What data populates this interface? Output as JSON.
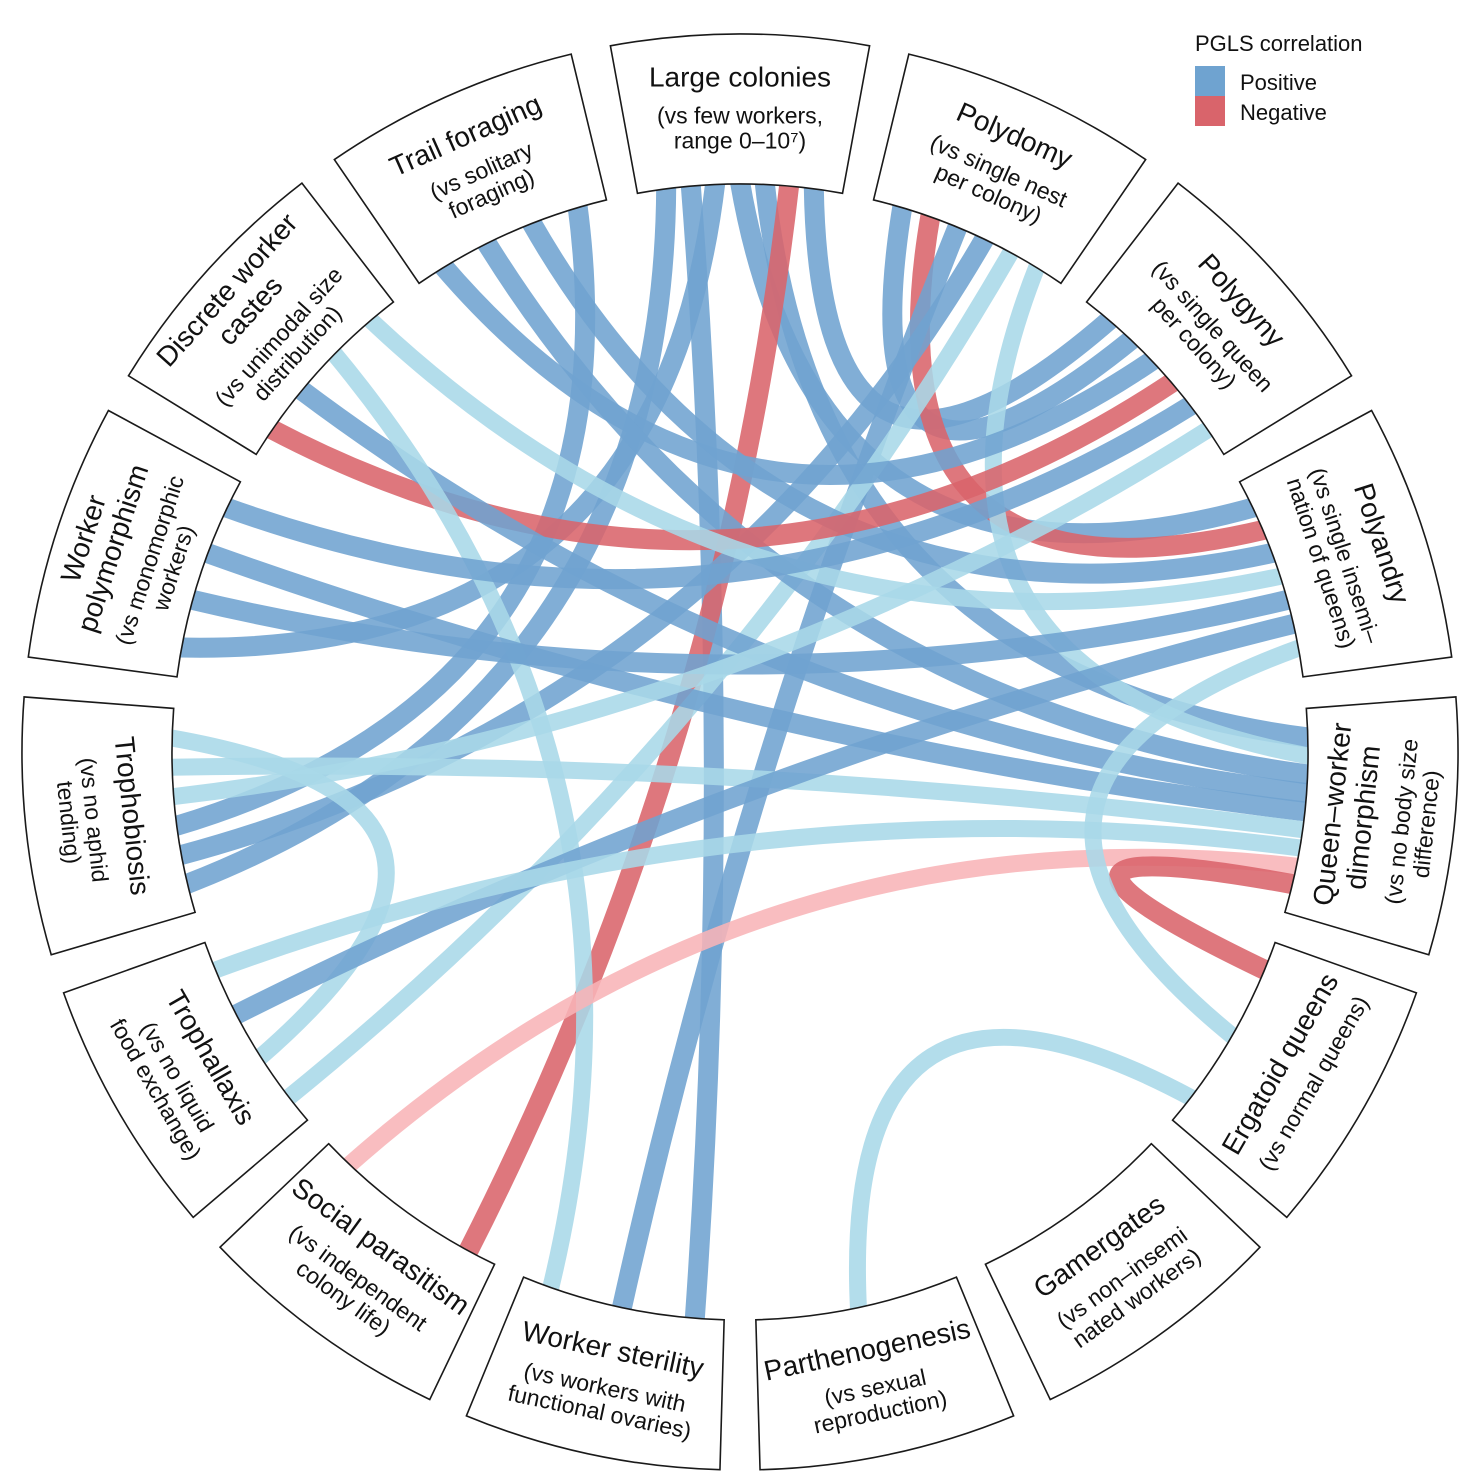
{
  "legend": {
    "title": "PGLS correlation",
    "items": [
      {
        "label": "Positive",
        "color": "#6fa3d0"
      },
      {
        "label": "Negative",
        "color": "#d9646b"
      }
    ]
  },
  "colors": {
    "positive_strong": "#6fa3d0",
    "positive_weak": "#a9d8e8",
    "negative_strong": "#d9646b",
    "negative_weak": "#f8b4b7"
  },
  "sectors": [
    {
      "id": "large-colonies",
      "title": [
        "Large colonies"
      ],
      "subtitle": [
        "(vs few workers,",
        "range 0–10⁷)"
      ]
    },
    {
      "id": "polydomy",
      "title": [
        "Polydomy"
      ],
      "subtitle": [
        "(vs single nest",
        "per colony)"
      ]
    },
    {
      "id": "polygyny",
      "title": [
        "Polygyny"
      ],
      "subtitle": [
        "(vs single queen",
        "per colony)"
      ]
    },
    {
      "id": "polyandry",
      "title": [
        "Polyandry"
      ],
      "subtitle": [
        "(vs single insemi–",
        "nation of queens)"
      ]
    },
    {
      "id": "queen-worker-dimorphism",
      "title": [
        "Queen–worker",
        "dimorphism"
      ],
      "subtitle": [
        "(vs no body size",
        "difference)"
      ]
    },
    {
      "id": "ergatoid-queens",
      "title": [
        "Ergatoid queens"
      ],
      "subtitle": [
        "(vs normal queens)"
      ]
    },
    {
      "id": "gamergates",
      "title": [
        "Gamergates"
      ],
      "subtitle": [
        "(vs non–insemi",
        "nated workers)"
      ]
    },
    {
      "id": "parthenogenesis",
      "title": [
        "Parthenogenesis"
      ],
      "subtitle": [
        "(vs sexual",
        "reproduction)"
      ]
    },
    {
      "id": "worker-sterility",
      "title": [
        "Worker sterility"
      ],
      "subtitle": [
        "(vs workers with",
        "functional ovaries)"
      ]
    },
    {
      "id": "social-parasitism",
      "title": [
        "Social parasitism"
      ],
      "subtitle": [
        "(vs independent",
        "colony life)"
      ]
    },
    {
      "id": "trophallaxis",
      "title": [
        "Trophallaxis"
      ],
      "subtitle": [
        "(vs no liquid",
        "food exchange)"
      ]
    },
    {
      "id": "trophobiosis",
      "title": [
        "Trophobiosis"
      ],
      "subtitle": [
        "(vs no aphid",
        "tending)"
      ]
    },
    {
      "id": "worker-polymorphism",
      "title": [
        "Worker",
        "polymorphism"
      ],
      "subtitle": [
        "(vs monomorphic",
        "workers)"
      ]
    },
    {
      "id": "discrete-worker-castes",
      "title": [
        "Discrete worker",
        "castes"
      ],
      "subtitle": [
        "(vs unimodal size",
        "distribution)"
      ]
    },
    {
      "id": "trail-foraging",
      "title": [
        "Trail foraging"
      ],
      "subtitle": [
        "(vs solitary",
        "foraging)"
      ]
    }
  ],
  "links": [
    {
      "from": "large-colonies",
      "to": "trophobiosis",
      "sign": "positive",
      "strength": "strong"
    },
    {
      "from": "large-colonies",
      "to": "worker-sterility",
      "sign": "positive",
      "strength": "strong"
    },
    {
      "from": "large-colonies",
      "to": "worker-polymorphism",
      "sign": "positive",
      "strength": "strong"
    },
    {
      "from": "large-colonies",
      "to": "polyandry",
      "sign": "positive",
      "strength": "strong"
    },
    {
      "from": "large-colonies",
      "to": "queen-worker-dimorphism",
      "sign": "positive",
      "strength": "strong"
    },
    {
      "from": "large-colonies",
      "to": "social-parasitism",
      "sign": "negative",
      "strength": "strong"
    },
    {
      "from": "large-colonies",
      "to": "polygyny",
      "sign": "positive",
      "strength": "strong"
    },
    {
      "from": "polydomy",
      "to": "polygyny",
      "sign": "positive",
      "strength": "strong"
    },
    {
      "from": "polydomy",
      "to": "polyandry",
      "sign": "negative",
      "strength": "strong"
    },
    {
      "from": "polydomy",
      "to": "worker-sterility",
      "sign": "positive",
      "strength": "strong"
    },
    {
      "from": "polydomy",
      "to": "trophobiosis",
      "sign": "positive",
      "strength": "strong"
    },
    {
      "from": "polydomy",
      "to": "trophallaxis",
      "sign": "positive",
      "strength": "weak"
    },
    {
      "from": "polydomy",
      "to": "queen-worker-dimorphism",
      "sign": "positive",
      "strength": "weak"
    },
    {
      "from": "trail-foraging",
      "to": "polygyny",
      "sign": "positive",
      "strength": "strong"
    },
    {
      "from": "trail-foraging",
      "to": "queen-worker-dimorphism",
      "sign": "positive",
      "strength": "strong"
    },
    {
      "from": "trail-foraging",
      "to": "polyandry",
      "sign": "positive",
      "strength": "strong"
    },
    {
      "from": "trail-foraging",
      "to": "trophobiosis",
      "sign": "positive",
      "strength": "strong"
    },
    {
      "from": "discrete-worker-castes",
      "to": "polygyny",
      "sign": "negative",
      "strength": "strong"
    },
    {
      "from": "discrete-worker-castes",
      "to": "queen-worker-dimorphism",
      "sign": "positive",
      "strength": "strong"
    },
    {
      "from": "discrete-worker-castes",
      "to": "worker-sterility",
      "sign": "positive",
      "strength": "weak"
    },
    {
      "from": "discrete-worker-castes",
      "to": "polyandry",
      "sign": "positive",
      "strength": "weak"
    },
    {
      "from": "worker-polymorphism",
      "to": "polyandry",
      "sign": "positive",
      "strength": "strong"
    },
    {
      "from": "worker-polymorphism",
      "to": "queen-worker-dimorphism",
      "sign": "positive",
      "strength": "strong"
    },
    {
      "from": "worker-polymorphism",
      "to": "polygyny",
      "sign": "positive",
      "strength": "strong"
    },
    {
      "from": "trophobiosis",
      "to": "polygyny",
      "sign": "positive",
      "strength": "weak"
    },
    {
      "from": "trophobiosis",
      "to": "queen-worker-dimorphism",
      "sign": "positive",
      "strength": "weak"
    },
    {
      "from": "trophobiosis",
      "to": "trophallaxis",
      "sign": "positive",
      "strength": "weak"
    },
    {
      "from": "trophallaxis",
      "to": "polyandry",
      "sign": "positive",
      "strength": "strong"
    },
    {
      "from": "trophallaxis",
      "to": "queen-worker-dimorphism",
      "sign": "positive",
      "strength": "weak"
    },
    {
      "from": "social-parasitism",
      "to": "queen-worker-dimorphism",
      "sign": "negative",
      "strength": "weak"
    },
    {
      "from": "queen-worker-dimorphism",
      "to": "ergatoid-queens",
      "sign": "negative",
      "strength": "strong"
    },
    {
      "from": "ergatoid-queens",
      "to": "polyandry",
      "sign": "positive",
      "strength": "weak"
    },
    {
      "from": "parthenogenesis",
      "to": "ergatoid-queens",
      "sign": "positive",
      "strength": "weak"
    }
  ]
}
